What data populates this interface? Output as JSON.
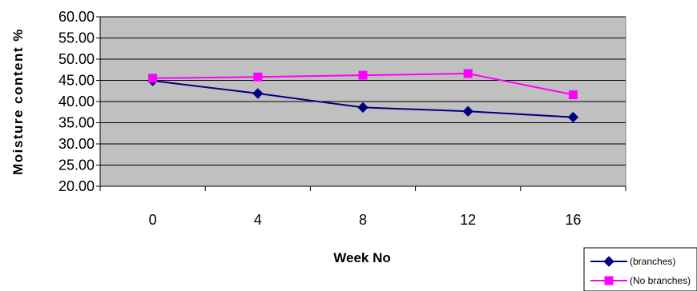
{
  "chart_data": {
    "type": "line",
    "title": "",
    "xlabel": "Week No",
    "ylabel": "Moisture content %",
    "categories": [
      "0",
      "4",
      "8",
      "12",
      "16"
    ],
    "ylim": [
      20.0,
      60.0
    ],
    "yticks": [
      "20.00",
      "25.00",
      "30.00",
      "35.00",
      "40.00",
      "45.00",
      "50.00",
      "55.00",
      "60.00"
    ],
    "grid": "horizontal",
    "legend_position": "bottom-right",
    "series": [
      {
        "name": "(branches)",
        "values": [
          44.9,
          41.9,
          38.6,
          37.7,
          36.3
        ],
        "color": "#000080",
        "marker": "diamond"
      },
      {
        "name": "(No branches)",
        "values": [
          45.5,
          45.8,
          46.2,
          46.6,
          41.6
        ],
        "color": "#FF00FF",
        "marker": "square"
      }
    ],
    "plot_background": "#C0C0C0"
  }
}
